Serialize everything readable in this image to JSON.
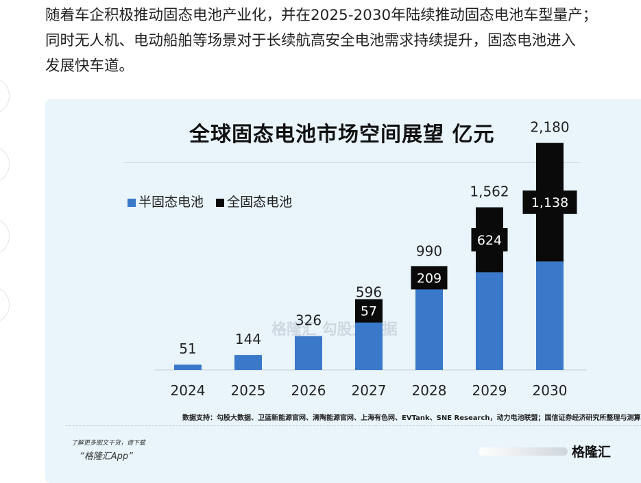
{
  "article": {
    "lines": [
      "随着车企积极推动固态电池产业化，并在2025-2030年陆续推动固态电池车型量产；",
      "同时无人机、电动船舶等场景对于长续航高安全电池需求持续提升，固态电池进入",
      "发展快车道。"
    ]
  },
  "chart_data": {
    "type": "bar",
    "title": "全球固态电池市场空间展望 亿元",
    "categories": [
      "2024",
      "2025",
      "2026",
      "2027",
      "2028",
      "2029",
      "2030"
    ],
    "series": [
      {
        "name": "半固态电池",
        "values": [
          51,
          144,
          326,
          539,
          781,
          938,
          1042
        ],
        "color": "#3a78c9"
      },
      {
        "name": "全固态电池",
        "values": [
          0,
          0,
          0,
          57,
          209,
          624,
          1138
        ],
        "color": "#0a0a0a"
      }
    ],
    "totals": [
      "51",
      "144",
      "326",
      "596",
      "990",
      "1,562",
      "2,180"
    ],
    "segment_labels": [
      "",
      "",
      "",
      "57",
      "209",
      "624",
      "1,138"
    ],
    "stacked": true,
    "legend_position": "top-left",
    "grid": false
  },
  "source": "数据支持：勾股大数据、卫蓝新能源官网、清陶能源官网、上海有色网、EVTank、SNE Research，动力电池联盟；国信证券经济研究所整理与测算",
  "watermark": "格隆汇  勾股大数据",
  "promo": {
    "line1": "了解更多图文干货，请下载",
    "line2": "“格隆汇App”",
    "brand": "格隆汇"
  }
}
